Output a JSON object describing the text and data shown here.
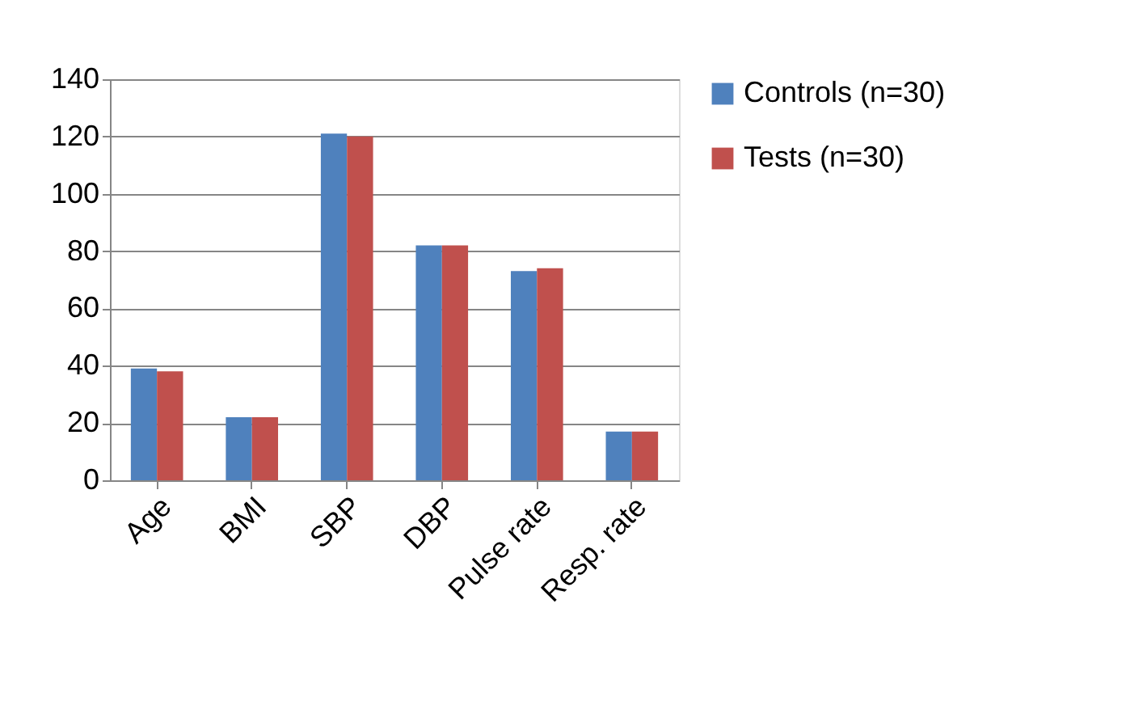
{
  "chart_data": {
    "type": "bar",
    "categories": [
      "Age",
      "BMI",
      "SBP",
      "DBP",
      "Pulse rate",
      "Resp. rate"
    ],
    "series": [
      {
        "name": "Controls (n=30)",
        "color": "#4f81bd",
        "values": [
          39,
          22,
          121,
          82,
          73,
          17
        ]
      },
      {
        "name": "Tests (n=30)",
        "color": "#c0504d",
        "values": [
          38,
          22,
          120,
          82,
          74,
          17
        ]
      }
    ],
    "ylim": [
      0,
      140
    ],
    "yticks": [
      0,
      20,
      40,
      60,
      80,
      100,
      120,
      140
    ],
    "grid": "y",
    "legend": "right"
  }
}
